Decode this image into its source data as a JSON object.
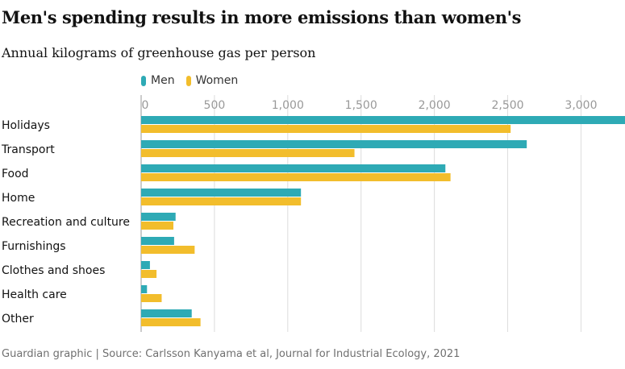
{
  "title": "Men's spending results in more emissions than women's",
  "subtitle": "Annual kilograms of greenhouse gas per person",
  "source": "Guardian graphic | Source: Carlsson Kanyama et al, Journal for Industrial Ecology, 2021",
  "colors": {
    "men": "#2eaab5",
    "women": "#f2bd2c",
    "grid": "#dcdcdc",
    "axis": "#999999"
  },
  "chart_data": {
    "type": "bar",
    "orientation": "horizontal",
    "title": "Men's spending results in more emissions than women's",
    "subtitle": "Annual kilograms of greenhouse gas per person",
    "xlim": [
      0,
      3300
    ],
    "x_ticks": [
      0,
      500,
      1000,
      1500,
      2000,
      2500,
      3000
    ],
    "x_tick_labels": [
      "0",
      "500",
      "1,000",
      "1,500",
      "2,000",
      "2,500",
      "3,000"
    ],
    "grid": true,
    "legend_position": "top-left",
    "categories": [
      "Holidays",
      "Transport",
      "Food",
      "Home",
      "Recreation and culture",
      "Furnishings",
      "Clothes and shoes",
      "Health care",
      "Other"
    ],
    "series": [
      {
        "name": "Men",
        "values": [
          3310,
          2630,
          2075,
          1090,
          235,
          225,
          60,
          40,
          345
        ]
      },
      {
        "name": "Women",
        "values": [
          2520,
          1455,
          2110,
          1090,
          220,
          365,
          105,
          140,
          405
        ]
      }
    ]
  }
}
